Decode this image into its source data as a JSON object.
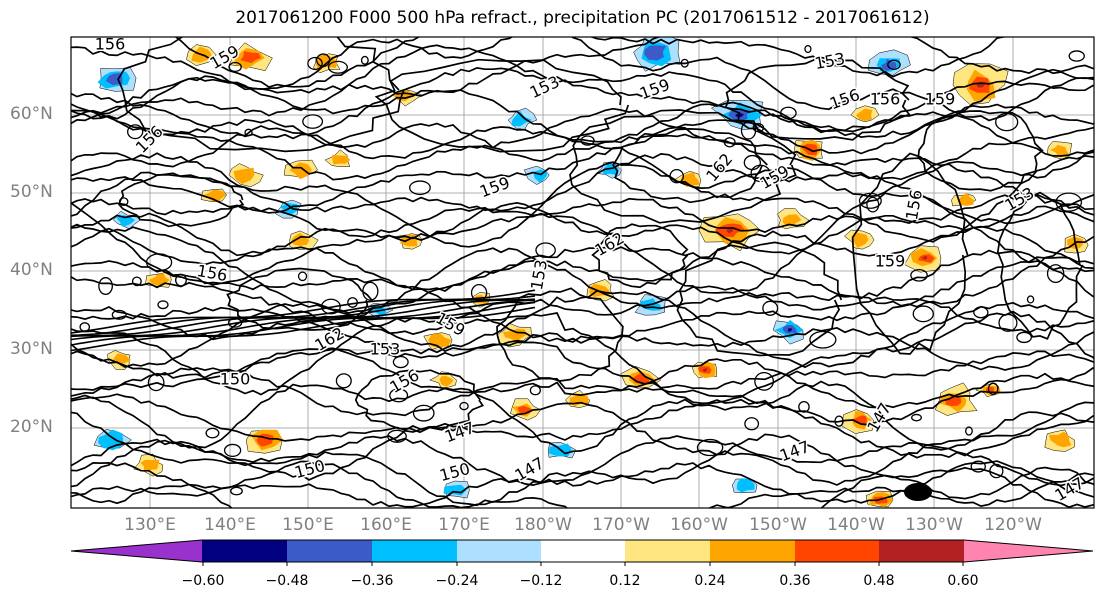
{
  "title": "2017061200 F000 500 hPa refract., precipitation PC (2017061512 - 2017061612)",
  "lat_labels": [
    "60°N",
    "50°N",
    "40°N",
    "30°N",
    "20°N"
  ],
  "lon_labels": [
    "130°E",
    "140°E",
    "150°E",
    "160°E",
    "170°E",
    "180°W",
    "170°W",
    "160°W",
    "150°W",
    "140°W",
    "130°W",
    "120°W"
  ],
  "contour_labels": [
    "156",
    "159",
    "153",
    "156",
    "159",
    "162",
    "159",
    "156",
    "159",
    "156",
    "153",
    "150",
    "147",
    "147",
    "147",
    "150",
    "150",
    "153",
    "156",
    "162",
    "159",
    "153",
    "162",
    "156",
    "159",
    "153",
    "159",
    "156",
    "147",
    "147"
  ],
  "colorbar": {
    "colors": [
      "#9932CC",
      "#000080",
      "#3A5BC8",
      "#00BFFF",
      "#ADDFFF",
      "#FFFFFF",
      "#FFE680",
      "#FFA500",
      "#FF4500",
      "#B22222",
      "#FF85B0"
    ],
    "ticks": [
      "−0.60",
      "−0.48",
      "−0.36",
      "−0.24",
      "−0.12",
      "0.12",
      "0.24",
      "0.36",
      "0.48",
      "0.60"
    ]
  }
}
